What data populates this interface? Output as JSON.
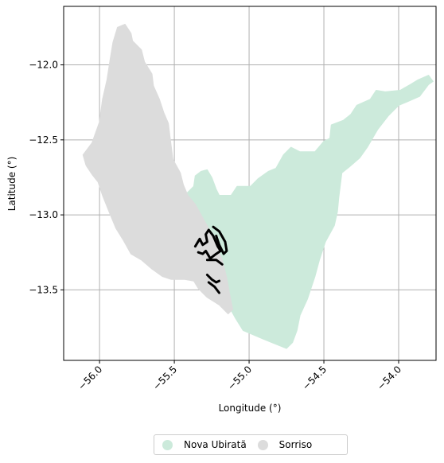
{
  "chart_data": {
    "type": "map",
    "title": "",
    "xlabel": "Longitude (°)",
    "ylabel": "Latitude (°)",
    "xlim": [
      -56.24,
      -53.75
    ],
    "ylim": [
      -13.97,
      -11.61
    ],
    "xticks": [
      -56.0,
      -55.5,
      -55.0,
      -54.5,
      -54.0
    ],
    "xtick_labels": [
      "−56.0",
      "−55.5",
      "−55.0",
      "−54.5",
      "−54.0"
    ],
    "yticks": [
      -12.0,
      -12.5,
      -13.0,
      -13.5
    ],
    "ytick_labels": [
      "−12.0",
      "−12.5",
      "−13.0",
      "−13.5"
    ],
    "grid": true,
    "legend_position": "bottom-center",
    "regions": [
      {
        "name": "Nova Ubiratã",
        "color": "#cceadb",
        "outline": [
          [
            -55.12,
            -12.87
          ],
          [
            -55.08,
            -12.81
          ],
          [
            -54.99,
            -12.81
          ],
          [
            -54.94,
            -12.76
          ],
          [
            -54.87,
            -12.71
          ],
          [
            -54.82,
            -12.69
          ],
          [
            -54.77,
            -12.6
          ],
          [
            -54.72,
            -12.55
          ],
          [
            -54.66,
            -12.58
          ],
          [
            -54.56,
            -12.58
          ],
          [
            -54.5,
            -12.51
          ],
          [
            -54.46,
            -12.49
          ],
          [
            -54.45,
            -12.4
          ],
          [
            -54.37,
            -12.37
          ],
          [
            -54.32,
            -12.33
          ],
          [
            -54.28,
            -12.27
          ],
          [
            -54.19,
            -12.23
          ],
          [
            -54.15,
            -12.17
          ],
          [
            -54.09,
            -12.18
          ],
          [
            -53.99,
            -12.17
          ],
          [
            -53.92,
            -12.13
          ],
          [
            -53.87,
            -12.1
          ],
          [
            -53.8,
            -12.07
          ],
          [
            -53.77,
            -12.11
          ],
          [
            -53.8,
            -12.13
          ],
          [
            -53.86,
            -12.21
          ],
          [
            -53.93,
            -12.24
          ],
          [
            -54.0,
            -12.27
          ],
          [
            -54.07,
            -12.34
          ],
          [
            -54.14,
            -12.43
          ],
          [
            -54.21,
            -12.55
          ],
          [
            -54.26,
            -12.62
          ],
          [
            -54.33,
            -12.68
          ],
          [
            -54.38,
            -12.72
          ],
          [
            -54.4,
            -12.88
          ],
          [
            -54.41,
            -12.98
          ],
          [
            -54.43,
            -13.07
          ],
          [
            -54.49,
            -13.18
          ],
          [
            -54.53,
            -13.3
          ],
          [
            -54.56,
            -13.41
          ],
          [
            -54.61,
            -13.56
          ],
          [
            -54.66,
            -13.67
          ],
          [
            -54.68,
            -13.77
          ],
          [
            -54.71,
            -13.85
          ],
          [
            -54.75,
            -13.89
          ],
          [
            -54.9,
            -13.83
          ],
          [
            -55.04,
            -13.77
          ],
          [
            -55.09,
            -13.69
          ],
          [
            -55.14,
            -13.6
          ],
          [
            -55.22,
            -13.44
          ],
          [
            -55.3,
            -13.29
          ],
          [
            -55.35,
            -13.16
          ],
          [
            -55.4,
            -13.0
          ],
          [
            -55.45,
            -12.87
          ],
          [
            -55.41,
            -12.85
          ],
          [
            -55.37,
            -12.81
          ],
          [
            -55.36,
            -12.74
          ],
          [
            -55.32,
            -12.71
          ],
          [
            -55.28,
            -12.7
          ],
          [
            -55.25,
            -12.75
          ],
          [
            -55.22,
            -12.83
          ],
          [
            -55.2,
            -12.87
          ],
          [
            -55.12,
            -12.87
          ]
        ]
      },
      {
        "name": "Sorriso",
        "color": "#dcdcdc",
        "outline": [
          [
            -55.83,
            -11.73
          ],
          [
            -55.79,
            -11.79
          ],
          [
            -55.78,
            -11.84
          ],
          [
            -55.72,
            -11.9
          ],
          [
            -55.7,
            -11.98
          ],
          [
            -55.65,
            -12.06
          ],
          [
            -55.64,
            -12.14
          ],
          [
            -55.6,
            -12.23
          ],
          [
            -55.57,
            -12.32
          ],
          [
            -55.54,
            -12.39
          ],
          [
            -55.53,
            -12.47
          ],
          [
            -55.52,
            -12.55
          ],
          [
            -55.51,
            -12.63
          ],
          [
            -55.46,
            -12.72
          ],
          [
            -55.44,
            -12.8
          ],
          [
            -55.41,
            -12.87
          ],
          [
            -55.36,
            -12.93
          ],
          [
            -55.31,
            -13.02
          ],
          [
            -55.26,
            -13.11
          ],
          [
            -55.22,
            -13.2
          ],
          [
            -55.18,
            -13.3
          ],
          [
            -55.15,
            -13.42
          ],
          [
            -55.13,
            -13.53
          ],
          [
            -55.11,
            -13.63
          ],
          [
            -55.14,
            -13.66
          ],
          [
            -55.2,
            -13.6
          ],
          [
            -55.28,
            -13.55
          ],
          [
            -55.34,
            -13.49
          ],
          [
            -55.37,
            -13.44
          ],
          [
            -55.43,
            -13.43
          ],
          [
            -55.52,
            -13.43
          ],
          [
            -55.58,
            -13.41
          ],
          [
            -55.65,
            -13.36
          ],
          [
            -55.72,
            -13.3
          ],
          [
            -55.79,
            -13.26
          ],
          [
            -55.84,
            -13.17
          ],
          [
            -55.89,
            -13.09
          ],
          [
            -55.94,
            -12.97
          ],
          [
            -55.98,
            -12.87
          ],
          [
            -56.01,
            -12.78
          ],
          [
            -56.05,
            -12.73
          ],
          [
            -56.09,
            -12.67
          ],
          [
            -56.11,
            -12.6
          ],
          [
            -56.05,
            -12.52
          ],
          [
            -56.0,
            -12.38
          ],
          [
            -55.98,
            -12.23
          ],
          [
            -55.95,
            -12.1
          ],
          [
            -55.93,
            -11.97
          ],
          [
            -55.91,
            -11.85
          ],
          [
            -55.88,
            -11.75
          ],
          [
            -55.83,
            -11.73
          ]
        ]
      }
    ],
    "outlined_features": [
      {
        "label": "",
        "color": "#000000",
        "points": [
          [
            -55.36,
            -13.21
          ],
          [
            -55.33,
            -13.16
          ],
          [
            -55.31,
            -13.2
          ],
          [
            -55.28,
            -13.18
          ],
          [
            -55.29,
            -13.13
          ],
          [
            -55.27,
            -13.1
          ],
          [
            -55.24,
            -13.14
          ],
          [
            -55.21,
            -13.21
          ],
          [
            -55.19,
            -13.24
          ],
          [
            -55.22,
            -13.26
          ],
          [
            -55.26,
            -13.29
          ],
          [
            -55.29,
            -13.24
          ],
          [
            -55.31,
            -13.26
          ],
          [
            -55.34,
            -13.25
          ]
        ]
      },
      {
        "label": "",
        "color": "#000000",
        "points": [
          [
            -55.24,
            -13.08
          ],
          [
            -55.2,
            -13.11
          ],
          [
            -55.16,
            -13.18
          ],
          [
            -55.15,
            -13.24
          ],
          [
            -55.17,
            -13.26
          ],
          [
            -55.2,
            -13.2
          ],
          [
            -55.22,
            -13.14
          ]
        ]
      },
      {
        "label": "",
        "color": "#000000",
        "points": [
          [
            -55.28,
            -13.3
          ],
          [
            -55.22,
            -13.3
          ],
          [
            -55.18,
            -13.33
          ]
        ]
      },
      {
        "label": "",
        "color": "#000000",
        "points": [
          [
            -55.28,
            -13.4
          ],
          [
            -55.25,
            -13.43
          ],
          [
            -55.22,
            -13.45
          ],
          [
            -55.2,
            -13.44
          ]
        ]
      },
      {
        "label": "",
        "color": "#000000",
        "points": [
          [
            -55.27,
            -13.45
          ],
          [
            -55.23,
            -13.48
          ],
          [
            -55.2,
            -13.52
          ]
        ]
      }
    ]
  },
  "legend": {
    "items": [
      {
        "label": "Nova Ubiratã",
        "color": "#cceadb"
      },
      {
        "label": "Sorriso",
        "color": "#dcdcdc"
      }
    ]
  }
}
